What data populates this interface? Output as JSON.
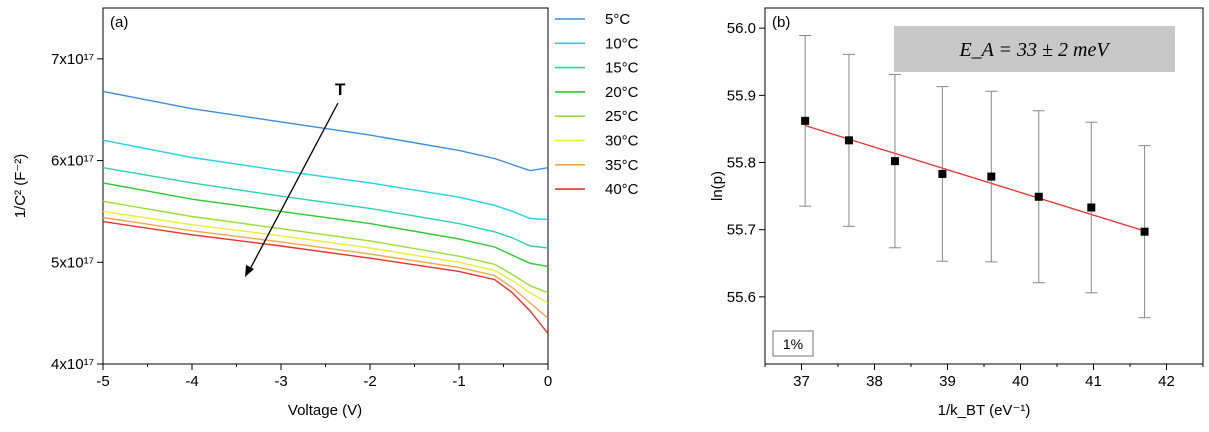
{
  "chart_data": [
    {
      "type": "line",
      "panel_label": "(a)",
      "xlabel": "Voltage (V)",
      "ylabel": "1/C² (F⁻²)",
      "xlim": [
        -5,
        0
      ],
      "ylim": [
        4e+17,
        7.5e+17
      ],
      "xticks": [
        -5,
        -4,
        -3,
        -2,
        -1,
        0
      ],
      "xtick_labels": [
        "-5",
        "-4",
        "-3",
        "-2",
        "-1",
        "0"
      ],
      "yticks": [
        4e+17,
        5e+17,
        6e+17,
        7e+17
      ],
      "ytick_labels": [
        "4x10¹⁷",
        "5x10¹⁷",
        "6x10¹⁷",
        "7x10¹⁷"
      ],
      "annotation": "T",
      "legend_position": "outside-right",
      "x": [
        -5,
        -4,
        -3,
        -2,
        -1,
        -0.6,
        -0.4,
        -0.2,
        0
      ],
      "series": [
        {
          "name": "5°C",
          "color": "#3c8ee0",
          "values": [
            6.68e+17,
            6.51e+17,
            6.38e+17,
            6.25e+17,
            6.1e+17,
            6.02e+17,
            5.96e+17,
            5.9e+17,
            5.93e+17
          ]
        },
        {
          "name": "10°C",
          "color": "#22d3e6",
          "values": [
            6.2e+17,
            6.03e+17,
            5.9e+17,
            5.78e+17,
            5.64e+17,
            5.56e+17,
            5.5e+17,
            5.43e+17,
            5.42e+17
          ]
        },
        {
          "name": "15°C",
          "color": "#2ed3a2",
          "values": [
            5.93e+17,
            5.78e+17,
            5.65e+17,
            5.53e+17,
            5.38e+17,
            5.3e+17,
            5.24e+17,
            5.16e+17,
            5.14e+17
          ]
        },
        {
          "name": "20°C",
          "color": "#2ec92e",
          "values": [
            5.78e+17,
            5.62e+17,
            5.5e+17,
            5.38e+17,
            5.23e+17,
            5.15e+17,
            5.07e+17,
            4.99e+17,
            4.96e+17
          ]
        },
        {
          "name": "25°C",
          "color": "#9add3a",
          "values": [
            5.6e+17,
            5.45e+17,
            5.33e+17,
            5.21e+17,
            5.06e+17,
            4.98e+17,
            4.88e+17,
            4.77e+17,
            4.7e+17
          ]
        },
        {
          "name": "30°C",
          "color": "#ecec3a",
          "values": [
            5.5e+17,
            5.37e+17,
            5.26e+17,
            5.14e+17,
            5e+17,
            4.92e+17,
            4.82e+17,
            4.7e+17,
            4.6e+17
          ]
        },
        {
          "name": "35°C",
          "color": "#f2a84a",
          "values": [
            5.44e+17,
            5.31e+17,
            5.2e+17,
            5.08e+17,
            4.95e+17,
            4.87e+17,
            4.75e+17,
            4.6e+17,
            4.45e+17
          ]
        },
        {
          "name": "40°C",
          "color": "#e8322e",
          "values": [
            5.4e+17,
            5.27e+17,
            5.16e+17,
            5.04e+17,
            4.91e+17,
            4.83e+17,
            4.7e+17,
            4.52e+17,
            4.3e+17
          ]
        }
      ]
    },
    {
      "type": "scatter",
      "panel_label": "(b)",
      "xlabel": "1/k_BT (eV⁻¹)",
      "ylabel": "ln(p)",
      "xlim": [
        36.5,
        42.5
      ],
      "ylim": [
        55.5,
        56.03
      ],
      "xticks": [
        37,
        38,
        39,
        40,
        41,
        42
      ],
      "xtick_labels": [
        "37",
        "38",
        "39",
        "40",
        "41",
        "42"
      ],
      "yticks": [
        55.6,
        55.7,
        55.8,
        55.9,
        56.0
      ],
      "ytick_labels": [
        "55.6",
        "55.7",
        "55.8",
        "55.9",
        "56.0"
      ],
      "annotation_box": "E_A = 33 ± 2 meV",
      "annotation_small": "1%",
      "points": {
        "x": [
          37.05,
          37.65,
          38.28,
          38.93,
          39.6,
          40.25,
          40.97,
          41.7
        ],
        "y": [
          55.862,
          55.833,
          55.802,
          55.783,
          55.779,
          55.749,
          55.733,
          55.697
        ],
        "yerr": [
          0.127,
          0.128,
          0.129,
          0.13,
          0.127,
          0.128,
          0.127,
          0.128
        ]
      },
      "fit": {
        "x": [
          37.05,
          41.7
        ],
        "y": [
          55.855,
          55.698
        ],
        "color": "#e8322e"
      }
    }
  ]
}
